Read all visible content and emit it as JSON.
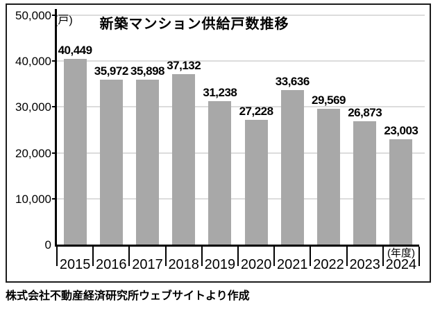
{
  "chart_data": {
    "type": "bar",
    "title": "新築マンション供給戸数推移",
    "unit_label": "(戸)",
    "axis_note": "(年度)",
    "categories": [
      "2015",
      "2016",
      "2017",
      "2018",
      "2019",
      "2020",
      "2021",
      "2022",
      "2023",
      "2024"
    ],
    "values": [
      40449,
      35972,
      35898,
      37132,
      31238,
      27228,
      33636,
      29569,
      26873,
      23003
    ],
    "ylim": [
      0,
      50000
    ],
    "yticks": [
      {
        "value": 0,
        "label": "0"
      },
      {
        "value": 10000,
        "label": "10,000"
      },
      {
        "value": 20000,
        "label": "20,000"
      },
      {
        "value": 30000,
        "label": "30,000"
      },
      {
        "value": 40000,
        "label": "40,000"
      },
      {
        "value": 50000,
        "label": "50,000"
      }
    ],
    "grid": "horizontal",
    "legend": "none",
    "bar_color": "#a8a8a8",
    "gridline_color": "#dcdcdc"
  },
  "footer": {
    "source": "株式会社不動産経済研究所ウェブサイトより作成"
  }
}
